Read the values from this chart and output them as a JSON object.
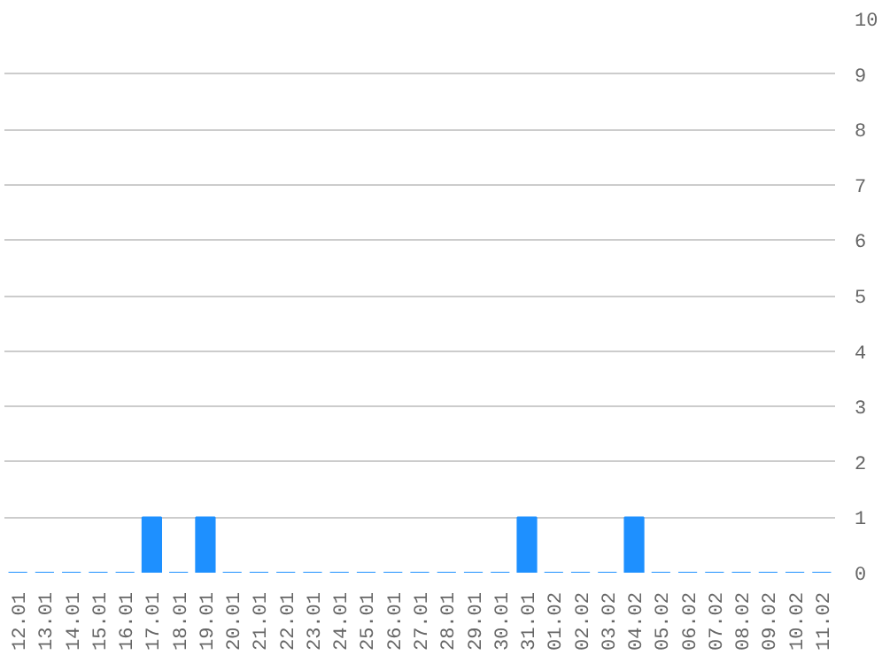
{
  "chart_data": {
    "type": "bar",
    "categories": [
      "12.01",
      "13.01",
      "14.01",
      "15.01",
      "16.01",
      "17.01",
      "18.01",
      "19.01",
      "20.01",
      "21.01",
      "22.01",
      "23.01",
      "24.01",
      "25.01",
      "26.01",
      "27.01",
      "28.01",
      "29.01",
      "30.01",
      "31.01",
      "01.02",
      "02.02",
      "03.02",
      "04.02",
      "05.02",
      "06.02",
      "07.02",
      "08.02",
      "09.02",
      "10.02",
      "11.02"
    ],
    "values": [
      0,
      0,
      0,
      0,
      0,
      1,
      0,
      1,
      0,
      0,
      0,
      0,
      0,
      0,
      0,
      0,
      0,
      0,
      0,
      1,
      0,
      0,
      0,
      1,
      0,
      0,
      0,
      0,
      0,
      0,
      0
    ],
    "color": "#1e90ff",
    "ylim": [
      0,
      10
    ],
    "yticks": [
      0,
      1,
      2,
      3,
      4,
      5,
      6,
      7,
      8,
      9,
      10
    ],
    "grid": "y"
  }
}
